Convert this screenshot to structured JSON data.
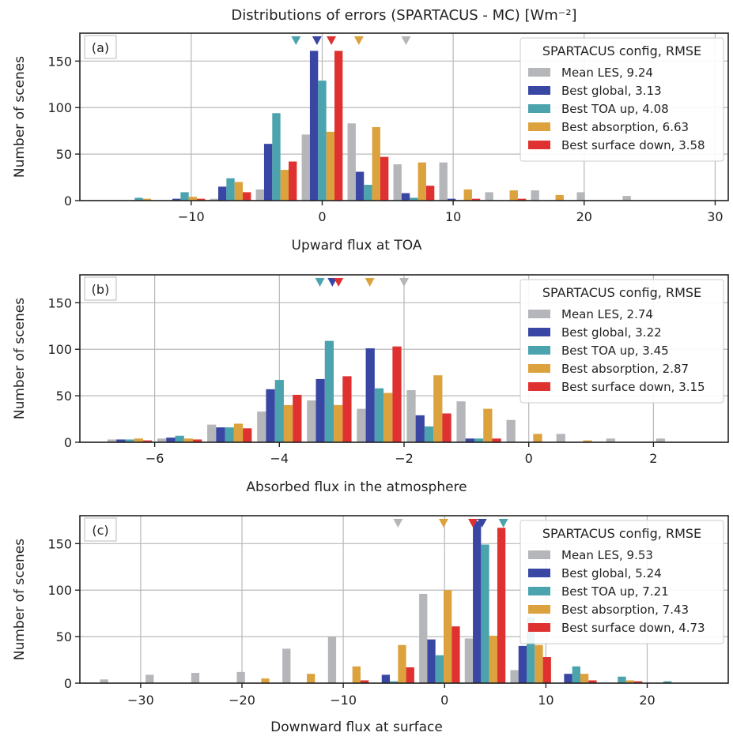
{
  "title": "Distributions of errors (SPARTACUS - MC) [Wm⁻²]",
  "colors": {
    "Mean LES": "#b5b6b9",
    "Best global": "#3a46a3",
    "Best TOA up": "#4aa3ad",
    "Best absorption": "#dca23d",
    "Best surface down": "#e03131"
  },
  "chart_data": [
    {
      "type": "bar",
      "panel_label": "(a)",
      "xlabel": "Upward flux at TOA",
      "ylabel": "Number of scenes",
      "xlim": [
        -18.5,
        31
      ],
      "ylim": [
        0,
        180
      ],
      "xticks": [
        -10,
        0,
        10,
        20,
        30
      ],
      "yticks": [
        0,
        50,
        100,
        150
      ],
      "grid": true,
      "legend_title": "SPARTACUS config, RMSE",
      "legend_position": "top-right",
      "bin_centers": [
        -14,
        -10.5,
        -7,
        -3.5,
        0,
        3.5,
        7,
        10.5,
        14,
        17.5,
        21,
        24.5,
        28
      ],
      "series": [
        {
          "name": "Mean LES",
          "rmse": "9.24",
          "marker_x": 6.4,
          "values": [
            0,
            0,
            2,
            12,
            71,
            83,
            39,
            41,
            9,
            11,
            9,
            5,
            0
          ]
        },
        {
          "name": "Best global",
          "rmse": "3.13",
          "marker_x": -0.4,
          "values": [
            0,
            2,
            15,
            61,
            161,
            31,
            8,
            2,
            0,
            0,
            0,
            0,
            0
          ]
        },
        {
          "name": "Best TOA up",
          "rmse": "4.08",
          "marker_x": -2.0,
          "values": [
            3,
            9,
            24,
            94,
            129,
            17,
            3,
            0,
            0,
            0,
            0,
            0,
            0
          ]
        },
        {
          "name": "Best absorption",
          "rmse": "6.63",
          "marker_x": 2.8,
          "values": [
            2,
            4,
            20,
            33,
            74,
            79,
            41,
            12,
            11,
            6,
            0,
            0,
            0
          ]
        },
        {
          "name": "Best surface down",
          "rmse": "3.58",
          "marker_x": 0.7,
          "values": [
            0,
            2,
            9,
            42,
            161,
            47,
            16,
            2,
            2,
            0,
            0,
            0,
            0
          ]
        }
      ]
    },
    {
      "type": "bar",
      "panel_label": "(b)",
      "xlabel": "Absorbed flux in the atmosphere",
      "ylabel": "Number of scenes",
      "xlim": [
        -7.2,
        3.2
      ],
      "ylim": [
        0,
        180
      ],
      "xticks": [
        -6,
        -4,
        -2,
        0,
        2
      ],
      "yticks": [
        0,
        50,
        100,
        150
      ],
      "grid": true,
      "legend_title": "SPARTACUS config, RMSE",
      "legend_position": "top-right",
      "bin_centers": [
        -6.4,
        -5.6,
        -4.8,
        -4.0,
        -3.2,
        -2.4,
        -1.6,
        -0.8,
        0.0,
        0.8,
        1.6,
        2.4
      ],
      "series": [
        {
          "name": "Mean LES",
          "rmse": "2.74",
          "marker_x": -2.0,
          "values": [
            3,
            4,
            19,
            33,
            45,
            36,
            56,
            44,
            24,
            9,
            4,
            4
          ]
        },
        {
          "name": "Best global",
          "rmse": "3.22",
          "marker_x": -3.15,
          "values": [
            3,
            5,
            16,
            57,
            68,
            101,
            29,
            4,
            0,
            0,
            0,
            0
          ]
        },
        {
          "name": "Best TOA up",
          "rmse": "3.45",
          "marker_x": -3.35,
          "values": [
            3,
            7,
            16,
            67,
            109,
            58,
            17,
            4,
            0,
            0,
            0,
            0
          ]
        },
        {
          "name": "Best absorption",
          "rmse": "2.87",
          "marker_x": -2.55,
          "values": [
            4,
            4,
            20,
            40,
            40,
            53,
            72,
            36,
            9,
            2,
            0,
            0
          ]
        },
        {
          "name": "Best surface down",
          "rmse": "3.15",
          "marker_x": -3.05,
          "values": [
            2,
            3,
            15,
            51,
            71,
            103,
            31,
            4,
            0,
            0,
            0,
            0
          ]
        }
      ]
    },
    {
      "type": "bar",
      "panel_label": "(c)",
      "xlabel": "Downward flux at surface",
      "ylabel": "Number of scenes",
      "xlim": [
        -36,
        28
      ],
      "ylim": [
        0,
        180
      ],
      "xticks": [
        -30,
        -20,
        -10,
        0,
        10,
        20
      ],
      "yticks": [
        0,
        50,
        100,
        150
      ],
      "grid": true,
      "legend_title": "SPARTACUS config, RMSE",
      "legend_position": "top-right",
      "bin_centers": [
        -32,
        -27.5,
        -23,
        -18.5,
        -14,
        -9.5,
        -5,
        -0.5,
        4,
        8.5,
        13,
        17.5,
        22
      ],
      "series": [
        {
          "name": "Mean LES",
          "rmse": "9.53",
          "marker_x": -4.6,
          "values": [
            4,
            9,
            11,
            12,
            37,
            50,
            0,
            96,
            48,
            14,
            0,
            0,
            0
          ]
        },
        {
          "name": "Best global",
          "rmse": "5.24",
          "marker_x": 3.7,
          "values": [
            0,
            0,
            0,
            0,
            0,
            0,
            9,
            47,
            174,
            40,
            10,
            0,
            0
          ]
        },
        {
          "name": "Best TOA up",
          "rmse": "7.21",
          "marker_x": 5.8,
          "values": [
            0,
            0,
            0,
            0,
            0,
            0,
            2,
            30,
            149,
            71,
            18,
            7,
            2
          ]
        },
        {
          "name": "Best absorption",
          "rmse": "7.43",
          "marker_x": -0.1,
          "values": [
            0,
            0,
            0,
            5,
            10,
            18,
            41,
            100,
            51,
            41,
            10,
            3,
            0
          ]
        },
        {
          "name": "Best surface down",
          "rmse": "4.73",
          "marker_x": 2.8,
          "values": [
            0,
            0,
            0,
            0,
            0,
            3,
            17,
            61,
            167,
            28,
            3,
            2,
            0
          ]
        }
      ]
    }
  ]
}
